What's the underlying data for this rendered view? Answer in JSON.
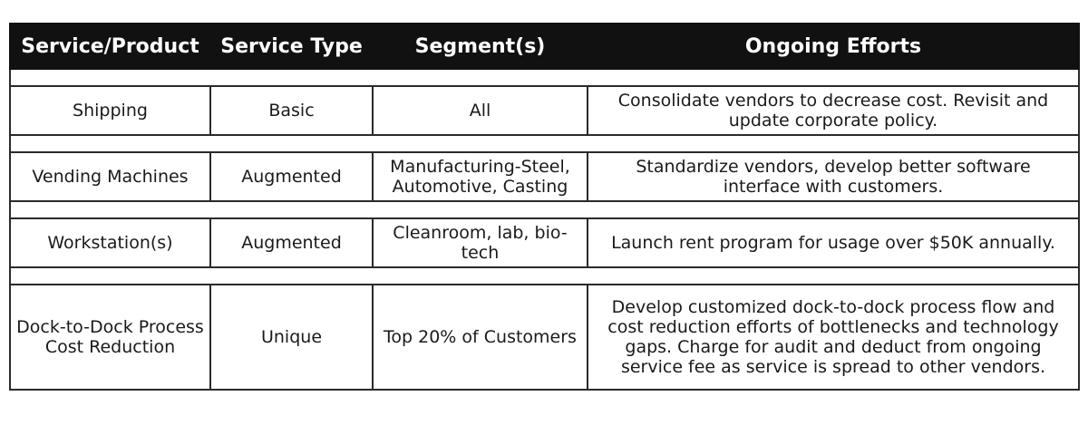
{
  "headers": [
    "Service/Product",
    "Service Type",
    "Segment(s)",
    "Ongoing Efforts"
  ],
  "rows": [
    {
      "product": "Shipping",
      "type": "Basic",
      "segments": "All",
      "efforts": "Consolidate vendors to decrease cost. Revisit and\nupdate corporate policy."
    },
    {
      "product": "Vending Machines",
      "type": "Augmented",
      "segments": "Manufacturing-Steel,\nAutomotive, Casting",
      "efforts": "Standardize vendors, develop better software\ninterface with customers."
    },
    {
      "product": "Workstation(s)",
      "type": "Augmented",
      "segments": "Cleanroom, lab, bio-\ntech",
      "efforts": "Launch rent program for usage over $50K annually."
    },
    {
      "product": "Dock-to-Dock Process\nCost Reduction",
      "type": "Unique",
      "segments": "Top 20% of Customers",
      "efforts": "Develop customized dock-to-dock process flow and\ncost reduction efforts of bottlenecks and technology\ngaps.  Charge for audit and deduct from ongoing\nservice fee as service is spread to other vendors."
    }
  ]
}
